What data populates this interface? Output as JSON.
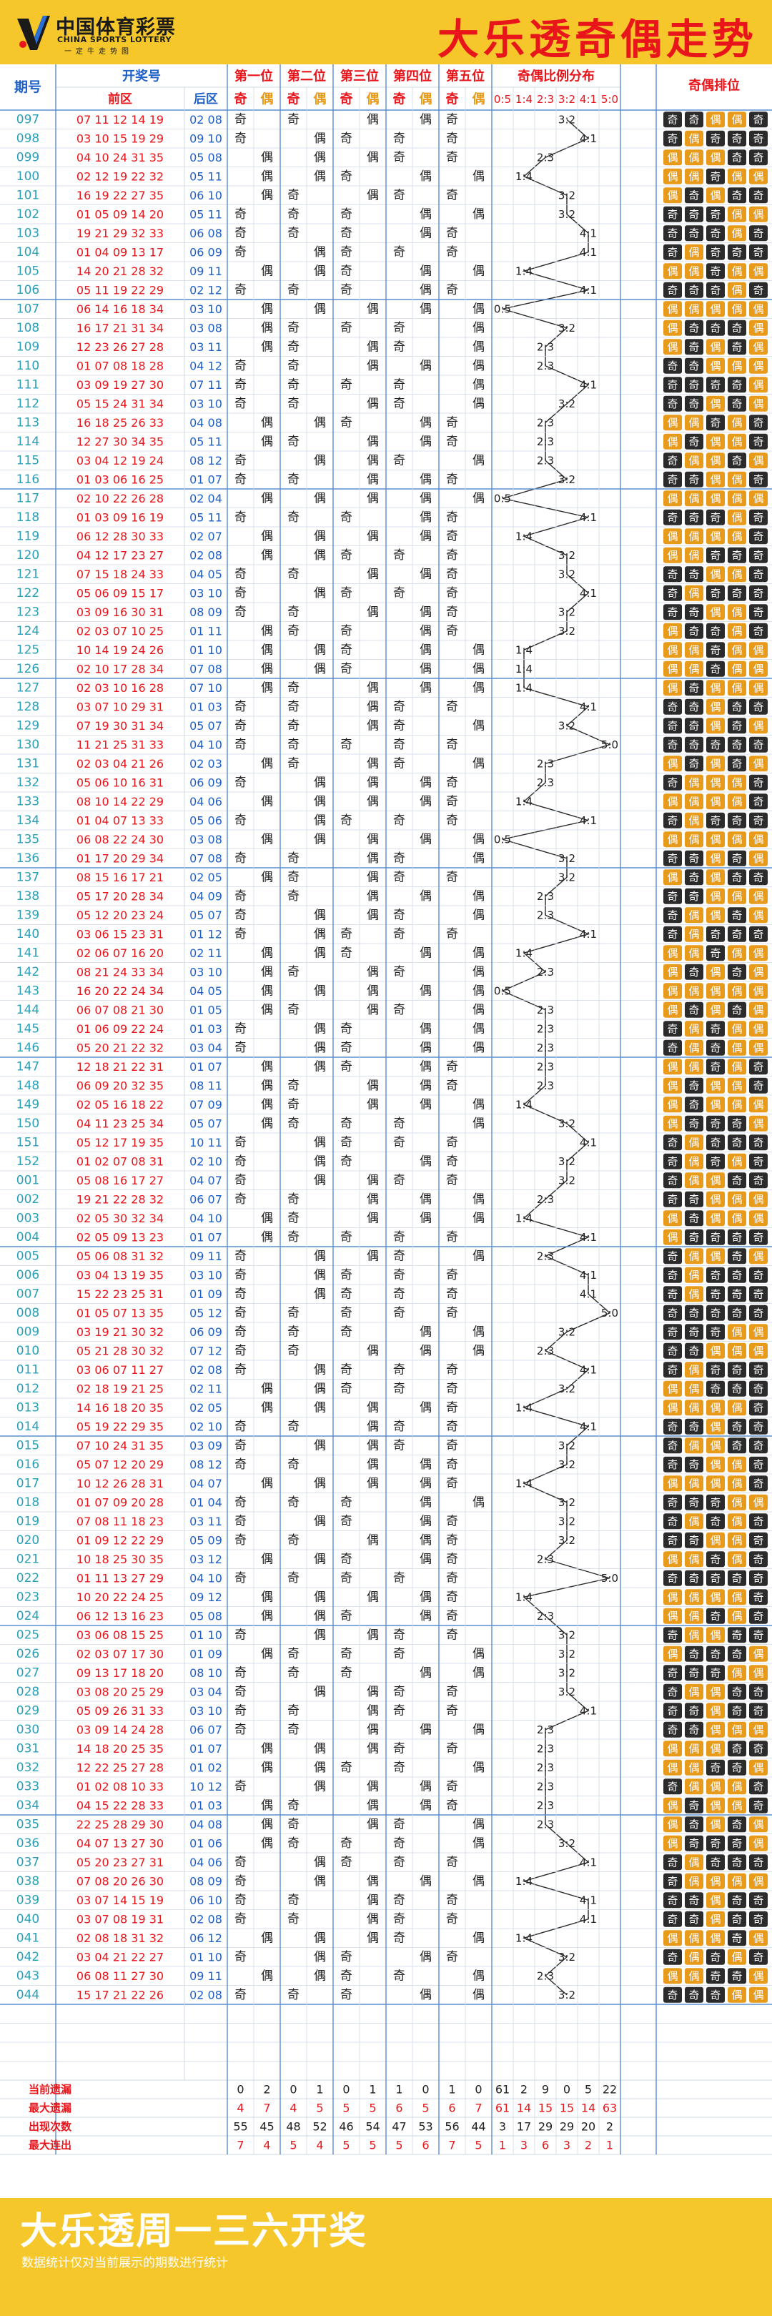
{
  "header": {
    "logo_cn": "中国体育彩票",
    "logo_en": "CHINA SPORTS LOTTERY",
    "logo_tag": "一定牛走势图",
    "title": "大乐透奇偶走势"
  },
  "footer": {
    "title": "大乐透周一三六开奖",
    "note": "数据统计仅对当前展示的期数进行统计"
  },
  "colors": {
    "red": "#e8151b",
    "blue": "#1e5fc8",
    "teal": "#2aa0b8",
    "yellow": "#f6c72a",
    "orange": "#e89a1a",
    "badge_odd": "#2b2b2b",
    "badge_even": "#e89a1a"
  },
  "chart_data": {
    "type": "table",
    "headers": {
      "issue": "期号",
      "draw": "开奖号",
      "front": "前区",
      "back": "后区",
      "positions": [
        "第一位",
        "第二位",
        "第三位",
        "第四位",
        "第五位"
      ],
      "ratio": "奇偶比例分布",
      "pattern": "奇偶排位",
      "odd": "奇",
      "even": "偶",
      "ratios": [
        "0:5",
        "1:4",
        "2:3",
        "3:2",
        "4:1",
        "5:0"
      ]
    },
    "rows": [
      {
        "issue": "097",
        "front": "07 11 12 14 19",
        "back": "02 08"
      },
      {
        "issue": "098",
        "front": "03 10 15 19 29",
        "back": "09 10"
      },
      {
        "issue": "099",
        "front": "04 10 24 31 35",
        "back": "05 08"
      },
      {
        "issue": "100",
        "front": "02 12 19 22 32",
        "back": "05 11"
      },
      {
        "issue": "101",
        "front": "16 19 22 27 35",
        "back": "06 10"
      },
      {
        "issue": "102",
        "front": "01 05 09 14 20",
        "back": "05 11"
      },
      {
        "issue": "103",
        "front": "19 21 29 32 33",
        "back": "06 08"
      },
      {
        "issue": "104",
        "front": "01 04 09 13 17",
        "back": "06 09"
      },
      {
        "issue": "105",
        "front": "14 20 21 28 32",
        "back": "09 11"
      },
      {
        "issue": "106",
        "front": "05 11 19 22 29",
        "back": "02 12"
      },
      {
        "issue": "107",
        "front": "06 14 16 18 34",
        "back": "03 10"
      },
      {
        "issue": "108",
        "front": "16 17 21 31 34",
        "back": "03 08"
      },
      {
        "issue": "109",
        "front": "12 23 26 27 28",
        "back": "03 11"
      },
      {
        "issue": "110",
        "front": "01 07 08 18 28",
        "back": "04 12"
      },
      {
        "issue": "111",
        "front": "03 09 19 27 30",
        "back": "07 11"
      },
      {
        "issue": "112",
        "front": "05 15 24 31 34",
        "back": "03 10"
      },
      {
        "issue": "113",
        "front": "16 18 25 26 33",
        "back": "04 08"
      },
      {
        "issue": "114",
        "front": "12 27 30 34 35",
        "back": "05 11"
      },
      {
        "issue": "115",
        "front": "03 04 12 19 24",
        "back": "08 12"
      },
      {
        "issue": "116",
        "front": "01 03 06 16 25",
        "back": "01 07"
      },
      {
        "issue": "117",
        "front": "02 10 22 26 28",
        "back": "02 04"
      },
      {
        "issue": "118",
        "front": "01 03 09 16 19",
        "back": "05 11"
      },
      {
        "issue": "119",
        "front": "06 12 28 30 33",
        "back": "02 07"
      },
      {
        "issue": "120",
        "front": "04 12 17 23 27",
        "back": "02 08"
      },
      {
        "issue": "121",
        "front": "07 15 18 24 33",
        "back": "04 05"
      },
      {
        "issue": "122",
        "front": "05 06 09 15 17",
        "back": "03 10"
      },
      {
        "issue": "123",
        "front": "03 09 16 30 31",
        "back": "08 09"
      },
      {
        "issue": "124",
        "front": "02 03 07 10 25",
        "back": "01 11"
      },
      {
        "issue": "125",
        "front": "10 14 19 24 26",
        "back": "01 10"
      },
      {
        "issue": "126",
        "front": "02 10 17 28 34",
        "back": "07 08"
      },
      {
        "issue": "127",
        "front": "02 03 10 16 28",
        "back": "07 10"
      },
      {
        "issue": "128",
        "front": "03 07 10 29 31",
        "back": "01 03"
      },
      {
        "issue": "129",
        "front": "07 19 30 31 34",
        "back": "05 07"
      },
      {
        "issue": "130",
        "front": "11 21 25 31 33",
        "back": "04 10"
      },
      {
        "issue": "131",
        "front": "02 03 04 21 26",
        "back": "02 03"
      },
      {
        "issue": "132",
        "front": "05 06 10 16 31",
        "back": "06 09"
      },
      {
        "issue": "133",
        "front": "08 10 14 22 29",
        "back": "04 06"
      },
      {
        "issue": "134",
        "front": "01 04 07 13 33",
        "back": "05 06"
      },
      {
        "issue": "135",
        "front": "06 08 22 24 30",
        "back": "03 08"
      },
      {
        "issue": "136",
        "front": "01 17 20 29 34",
        "back": "07 08"
      },
      {
        "issue": "137",
        "front": "08 15 16 17 21",
        "back": "02 05"
      },
      {
        "issue": "138",
        "front": "05 17 20 28 34",
        "back": "04 09"
      },
      {
        "issue": "139",
        "front": "05 12 20 23 24",
        "back": "05 07"
      },
      {
        "issue": "140",
        "front": "03 06 15 23 31",
        "back": "01 12"
      },
      {
        "issue": "141",
        "front": "02 06 07 16 20",
        "back": "02 11"
      },
      {
        "issue": "142",
        "front": "08 21 24 33 34",
        "back": "03 10"
      },
      {
        "issue": "143",
        "front": "16 20 22 24 34",
        "back": "04 05"
      },
      {
        "issue": "144",
        "front": "06 07 08 21 30",
        "back": "01 05"
      },
      {
        "issue": "145",
        "front": "01 06 09 22 24",
        "back": "01 03"
      },
      {
        "issue": "146",
        "front": "05 20 21 22 32",
        "back": "03 04"
      },
      {
        "issue": "147",
        "front": "12 18 21 22 31",
        "back": "01 07"
      },
      {
        "issue": "148",
        "front": "06 09 20 32 35",
        "back": "08 11"
      },
      {
        "issue": "149",
        "front": "02 05 16 18 22",
        "back": "07 09"
      },
      {
        "issue": "150",
        "front": "04 11 23 25 34",
        "back": "05 07"
      },
      {
        "issue": "151",
        "front": "05 12 17 19 35",
        "back": "10 11"
      },
      {
        "issue": "152",
        "front": "01 02 07 08 31",
        "back": "02 10"
      },
      {
        "issue": "001",
        "front": "05 08 16 17 27",
        "back": "04 07"
      },
      {
        "issue": "002",
        "front": "19 21 22 28 32",
        "back": "06 07"
      },
      {
        "issue": "003",
        "front": "02 05 30 32 34",
        "back": "04 10"
      },
      {
        "issue": "004",
        "front": "02 05 09 13 23",
        "back": "01 07"
      },
      {
        "issue": "005",
        "front": "05 06 08 31 32",
        "back": "09 11"
      },
      {
        "issue": "006",
        "front": "03 04 13 19 35",
        "back": "03 10"
      },
      {
        "issue": "007",
        "front": "15 22 23 25 31",
        "back": "01 09"
      },
      {
        "issue": "008",
        "front": "01 05 07 13 35",
        "back": "05 12"
      },
      {
        "issue": "009",
        "front": "03 19 21 30 32",
        "back": "06 09"
      },
      {
        "issue": "010",
        "front": "05 21 28 30 32",
        "back": "07 12"
      },
      {
        "issue": "011",
        "front": "03 06 07 11 27",
        "back": "02 08"
      },
      {
        "issue": "012",
        "front": "02 18 19 21 25",
        "back": "02 11"
      },
      {
        "issue": "013",
        "front": "14 16 18 20 35",
        "back": "02 05"
      },
      {
        "issue": "014",
        "front": "05 19 22 29 35",
        "back": "02 10"
      },
      {
        "issue": "015",
        "front": "07 10 24 31 35",
        "back": "03 09"
      },
      {
        "issue": "016",
        "front": "05 07 12 20 29",
        "back": "08 12"
      },
      {
        "issue": "017",
        "front": "10 12 26 28 31",
        "back": "04 07"
      },
      {
        "issue": "018",
        "front": "01 07 09 20 28",
        "back": "01 04"
      },
      {
        "issue": "019",
        "front": "07 08 11 18 23",
        "back": "03 11"
      },
      {
        "issue": "020",
        "front": "01 09 12 22 29",
        "back": "05 09"
      },
      {
        "issue": "021",
        "front": "10 18 25 30 35",
        "back": "03 12"
      },
      {
        "issue": "022",
        "front": "01 11 13 27 29",
        "back": "04 10"
      },
      {
        "issue": "023",
        "front": "10 20 22 24 25",
        "back": "09 12"
      },
      {
        "issue": "024",
        "front": "06 12 13 16 23",
        "back": "05 08"
      },
      {
        "issue": "025",
        "front": "03 06 08 15 25",
        "back": "01 10"
      },
      {
        "issue": "026",
        "front": "02 03 07 17 30",
        "back": "01 09"
      },
      {
        "issue": "027",
        "front": "09 13 17 18 20",
        "back": "08 10"
      },
      {
        "issue": "028",
        "front": "03 08 20 25 29",
        "back": "03 04"
      },
      {
        "issue": "029",
        "front": "05 09 26 31 33",
        "back": "03 10"
      },
      {
        "issue": "030",
        "front": "03 09 14 24 28",
        "back": "06 07"
      },
      {
        "issue": "031",
        "front": "14 18 20 25 35",
        "back": "01 07"
      },
      {
        "issue": "032",
        "front": "12 22 25 27 28",
        "back": "01 02"
      },
      {
        "issue": "033",
        "front": "01 02 08 10 33",
        "back": "10 12"
      },
      {
        "issue": "034",
        "front": "04 15 22 28 33",
        "back": "01 03"
      },
      {
        "issue": "035",
        "front": "22 25 28 29 30",
        "back": "04 08"
      },
      {
        "issue": "036",
        "front": "04 07 13 27 30",
        "back": "01 06"
      },
      {
        "issue": "037",
        "front": "05 20 23 27 31",
        "back": "04 06"
      },
      {
        "issue": "038",
        "front": "07 08 20 26 30",
        "back": "08 09"
      },
      {
        "issue": "039",
        "front": "03 07 14 15 19",
        "back": "06 10"
      },
      {
        "issue": "040",
        "front": "03 07 08 19 31",
        "back": "02 08"
      },
      {
        "issue": "041",
        "front": "02 08 18 31 32",
        "back": "06 12"
      },
      {
        "issue": "042",
        "front": "03 04 21 22 27",
        "back": "01 10"
      },
      {
        "issue": "043",
        "front": "06 08 11 27 30",
        "back": "09 11"
      },
      {
        "issue": "044",
        "front": "15 17 21 22 26",
        "back": "02 08"
      }
    ],
    "empty_rows": 4,
    "summary_labels": [
      "当前遗漏",
      "最大遗漏",
      "出现次数",
      "最大连出"
    ],
    "summary": {
      "current_miss": [
        0,
        2,
        0,
        1,
        0,
        1,
        1,
        0,
        1,
        0,
        61,
        2,
        9,
        0,
        5,
        22
      ],
      "max_miss": [
        4,
        7,
        4,
        5,
        5,
        5,
        6,
        5,
        6,
        7,
        61,
        14,
        15,
        15,
        14,
        63
      ],
      "occurrences": [
        55,
        45,
        48,
        52,
        46,
        54,
        47,
        53,
        56,
        44,
        3,
        17,
        29,
        29,
        20,
        2
      ],
      "max_streak": [
        7,
        4,
        5,
        4,
        5,
        5,
        5,
        6,
        7,
        5,
        1,
        3,
        6,
        3,
        2,
        1
      ]
    }
  }
}
